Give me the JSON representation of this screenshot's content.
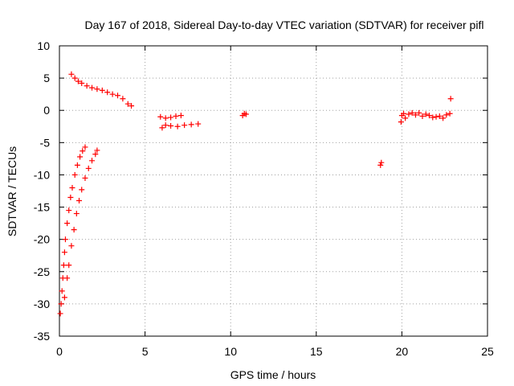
{
  "chart_data": {
    "type": "scatter",
    "title": "Day 167 of 2018, Sidereal Day-to-day VTEC variation (SDTVAR) for receiver pifl",
    "xlabel": "GPS time / hours",
    "ylabel": "SDTVAR / TECUs",
    "xlim": [
      0,
      25
    ],
    "ylim": [
      -35,
      10
    ],
    "xticks": [
      "0",
      "5",
      "10",
      "15",
      "20",
      "25"
    ],
    "yticks": [
      "10",
      "5",
      "0",
      "-5",
      "-10",
      "-15",
      "-20",
      "-25",
      "-30",
      "-35"
    ],
    "grid": true,
    "marker": "plus",
    "color": "#ff0000",
    "x": [
      0.05,
      0.1,
      0.15,
      0.2,
      0.25,
      0.3,
      0.35,
      0.45,
      0.55,
      0.65,
      0.75,
      0.9,
      1.05,
      1.2,
      1.35,
      1.5,
      0.3,
      0.45,
      0.55,
      0.7,
      0.85,
      1.0,
      1.15,
      1.3,
      1.5,
      1.7,
      1.9,
      2.1,
      2.2,
      0.7,
      0.9,
      1.1,
      1.3,
      1.6,
      1.9,
      2.2,
      2.5,
      2.8,
      3.1,
      3.4,
      3.7,
      4.0,
      4.2,
      5.9,
      6.2,
      6.5,
      6.8,
      7.1,
      6.0,
      6.2,
      6.5,
      6.9,
      7.3,
      7.7,
      8.1,
      10.7,
      10.8,
      10.9,
      18.75,
      18.8,
      19.95,
      20.0,
      20.1,
      20.2,
      20.4,
      20.6,
      20.8,
      21.0,
      21.2,
      21.4,
      21.6,
      21.8,
      22.0,
      22.2,
      22.4,
      22.6,
      22.8,
      22.85
    ],
    "y": [
      -31.5,
      -30,
      -28,
      -26,
      -24,
      -22,
      -20,
      -17.5,
      -15.5,
      -13.5,
      -12,
      -10,
      -8.5,
      -7.2,
      -6.3,
      -5.7,
      -29,
      -26,
      -24,
      -21,
      -18.5,
      -16,
      -14,
      -12.3,
      -10.5,
      -9,
      -7.8,
      -6.8,
      -6.2,
      5.6,
      5.0,
      4.5,
      4.2,
      3.8,
      3.5,
      3.3,
      3.1,
      2.8,
      2.5,
      2.3,
      1.8,
      1.0,
      0.7,
      -1.0,
      -1.2,
      -1.1,
      -0.9,
      -0.8,
      -2.7,
      -2.3,
      -2.4,
      -2.5,
      -2.3,
      -2.2,
      -2.1,
      -0.8,
      -0.5,
      -0.6,
      -8.5,
      -8.1,
      -1.8,
      -0.8,
      -0.5,
      -1.2,
      -0.6,
      -0.4,
      -0.7,
      -0.4,
      -0.9,
      -0.6,
      -0.8,
      -1.1,
      -1.0,
      -0.9,
      -1.2,
      -0.7,
      -0.5,
      1.8
    ]
  }
}
